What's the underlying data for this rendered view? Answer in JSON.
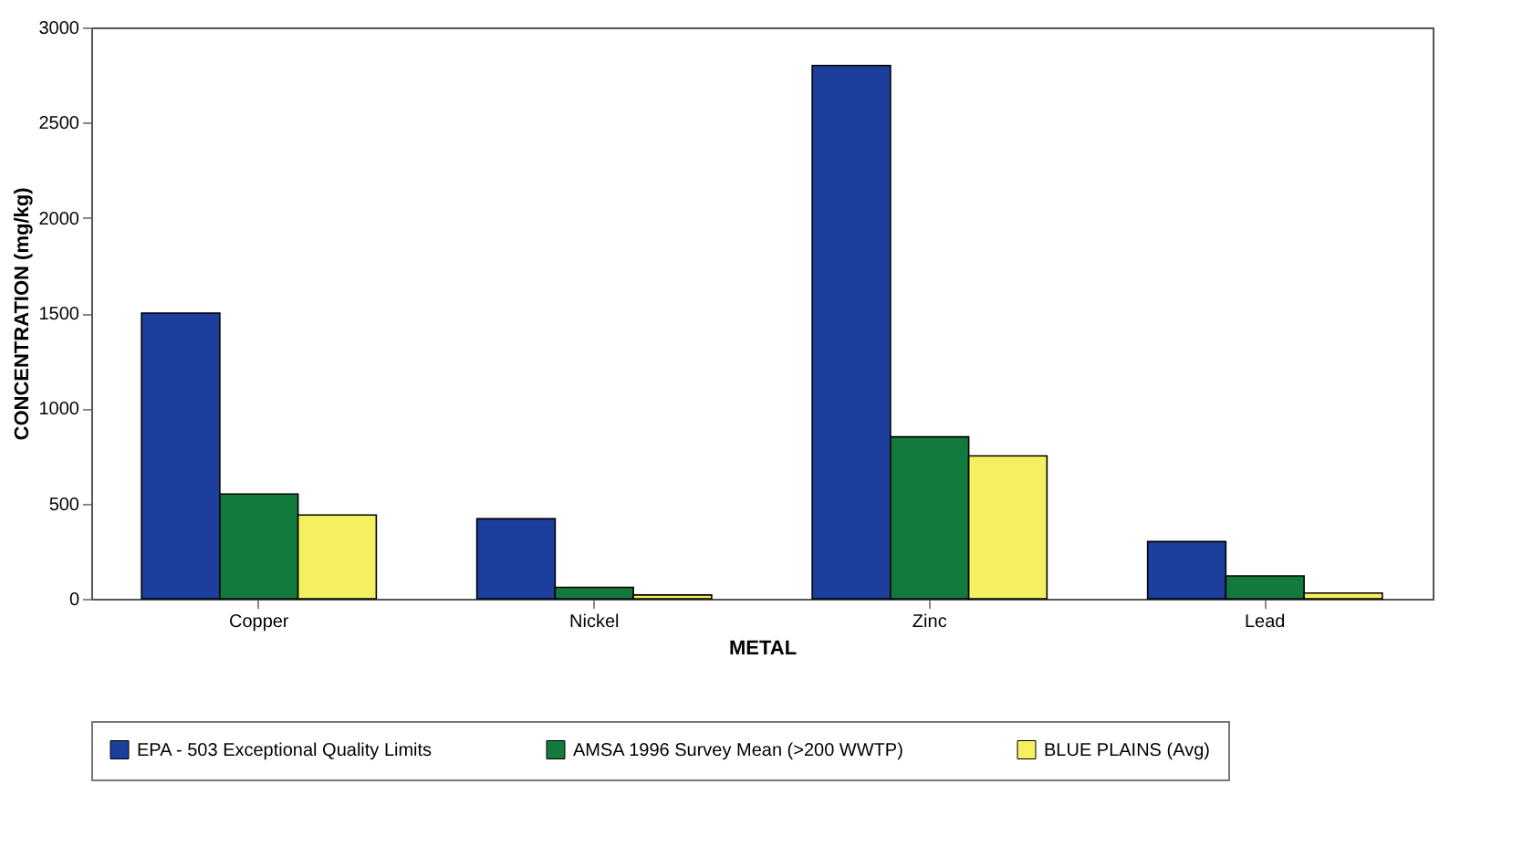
{
  "chart_data": {
    "type": "bar",
    "xlabel": "METAL",
    "ylabel": "CONCENTRATION (mg/kg)",
    "categories": [
      "Copper",
      "Nickel",
      "Zinc",
      "Lead"
    ],
    "series": [
      {
        "name": "EPA - 503 Exceptional Quality Limits",
        "color": "#1c3f9e",
        "values": [
          1500,
          420,
          2800,
          300
        ]
      },
      {
        "name": "AMSA 1996 Survey Mean (>200 WWTP)",
        "color": "#137a3e",
        "values": [
          550,
          60,
          850,
          120
        ]
      },
      {
        "name": "BLUE PLAINS (Avg)",
        "color": "#f5f060",
        "values": [
          440,
          20,
          750,
          30
        ]
      }
    ],
    "ylim": [
      0,
      3000
    ],
    "yticks": [
      0,
      500,
      1000,
      1500,
      2000,
      2500,
      3000
    ],
    "grid": false,
    "legend": "bottom"
  }
}
